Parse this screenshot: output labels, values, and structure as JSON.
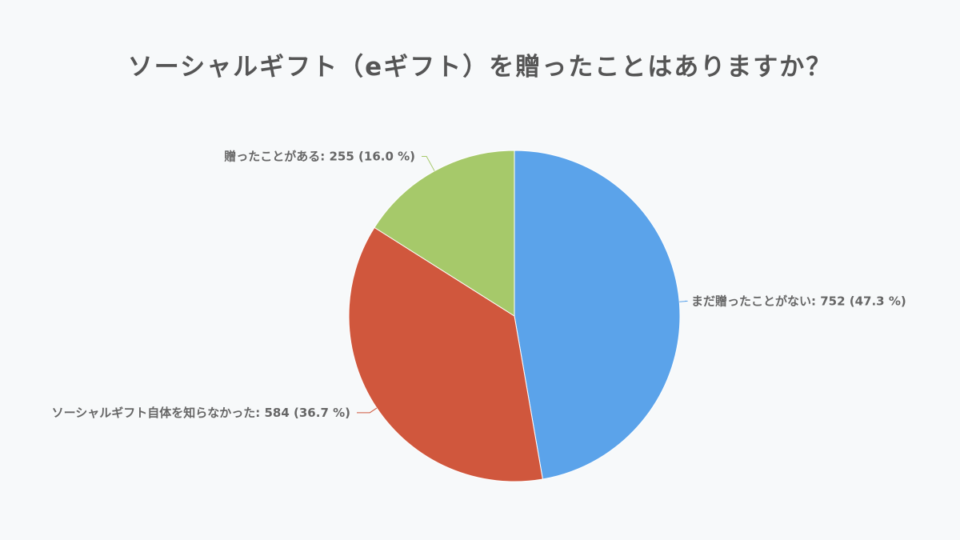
{
  "chart_data": {
    "type": "pie",
    "title": "ソーシャルギフト（eギフト）を贈ったことはありますか？",
    "slices": [
      {
        "label": "まだ贈ったことがない",
        "value": 752,
        "percent": 47.3,
        "display": "まだ贈ったことがない: 752 (47.3 %)",
        "color": "#5ba3ea"
      },
      {
        "label": "ソーシャルギフト自体を知らなかった",
        "value": 584,
        "percent": 36.7,
        "display": "ソーシャルギフト自体を知らなかった: 584 (36.7 %)",
        "color": "#d0573d"
      },
      {
        "label": "贈ったことがある",
        "value": 255,
        "percent": 16.0,
        "display": "贈ったことがある: 255 (16.0 %)",
        "color": "#a6c96a"
      }
    ],
    "start_angle": "top",
    "direction": "clockwise",
    "legend": "none",
    "label_position": "outside"
  }
}
